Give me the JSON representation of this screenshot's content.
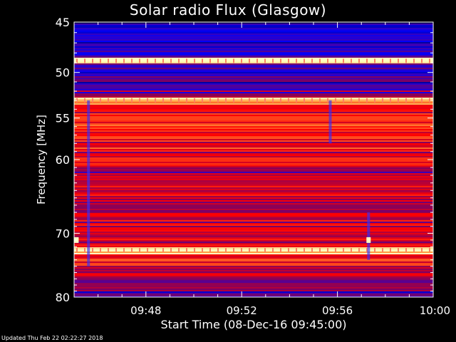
{
  "chart_data": {
    "type": "heatmap",
    "title": "Solar radio Flux (Glasgow)",
    "xlabel": "Start Time (08-Dec-16 09:45:00)",
    "ylabel": "Frequency [MHz]",
    "x_ticks": [
      "09:48",
      "09:52",
      "09:56",
      "10:00"
    ],
    "x_tick_minutes": [
      3,
      7,
      11,
      15
    ],
    "xlim_minutes": [
      0,
      15
    ],
    "y_ticks": [
      45,
      50,
      55,
      60,
      70,
      80
    ],
    "ylim": [
      45,
      80
    ],
    "colormap": [
      "#000040",
      "#0000ff",
      "#800060",
      "#ff0000",
      "#ffa040",
      "#ffffc0"
    ],
    "bands": [
      {
        "freq": 45.0,
        "level": 0.2
      },
      {
        "freq": 46.0,
        "level": 0.22
      },
      {
        "freq": 47.5,
        "level": 0.25
      },
      {
        "freq": 48.2,
        "level": 0.28
      },
      {
        "freq": 48.8,
        "level": 0.97
      },
      {
        "freq": 49.3,
        "level": 0.3
      },
      {
        "freq": 50.0,
        "level": 0.3
      },
      {
        "freq": 51.5,
        "level": 0.32
      },
      {
        "freq": 52.5,
        "level": 0.45
      },
      {
        "freq": 53.0,
        "level": 0.88
      },
      {
        "freq": 54.0,
        "level": 0.6
      },
      {
        "freq": 56.0,
        "level": 0.65
      },
      {
        "freq": 58.0,
        "level": 0.62
      },
      {
        "freq": 60.0,
        "level": 0.57
      },
      {
        "freq": 62.0,
        "level": 0.52
      },
      {
        "freq": 64.0,
        "level": 0.55
      },
      {
        "freq": 66.0,
        "level": 0.48
      },
      {
        "freq": 68.0,
        "level": 0.55
      },
      {
        "freq": 70.0,
        "level": 0.5
      },
      {
        "freq": 71.5,
        "level": 0.55
      },
      {
        "freq": 72.5,
        "level": 0.95
      },
      {
        "freq": 74.0,
        "level": 0.6
      },
      {
        "freq": 76.0,
        "level": 0.5
      },
      {
        "freq": 78.0,
        "level": 0.42
      },
      {
        "freq": 80.0,
        "level": 0.38
      }
    ],
    "features": [
      {
        "type": "vertical_streak",
        "minute": 0.6,
        "freq_range": [
          53,
          75
        ]
      },
      {
        "type": "vertical_streak",
        "minute": 10.7,
        "freq_range": [
          53,
          58
        ]
      },
      {
        "type": "vertical_streak",
        "minute": 12.3,
        "freq_range": [
          67,
          74
        ]
      },
      {
        "type": "point",
        "minute": 0.1,
        "freq": 71.0
      },
      {
        "type": "point",
        "minute": 12.3,
        "freq": 71.0
      }
    ]
  },
  "footer": "Updated Thu Feb 22 02:22:27 2018"
}
